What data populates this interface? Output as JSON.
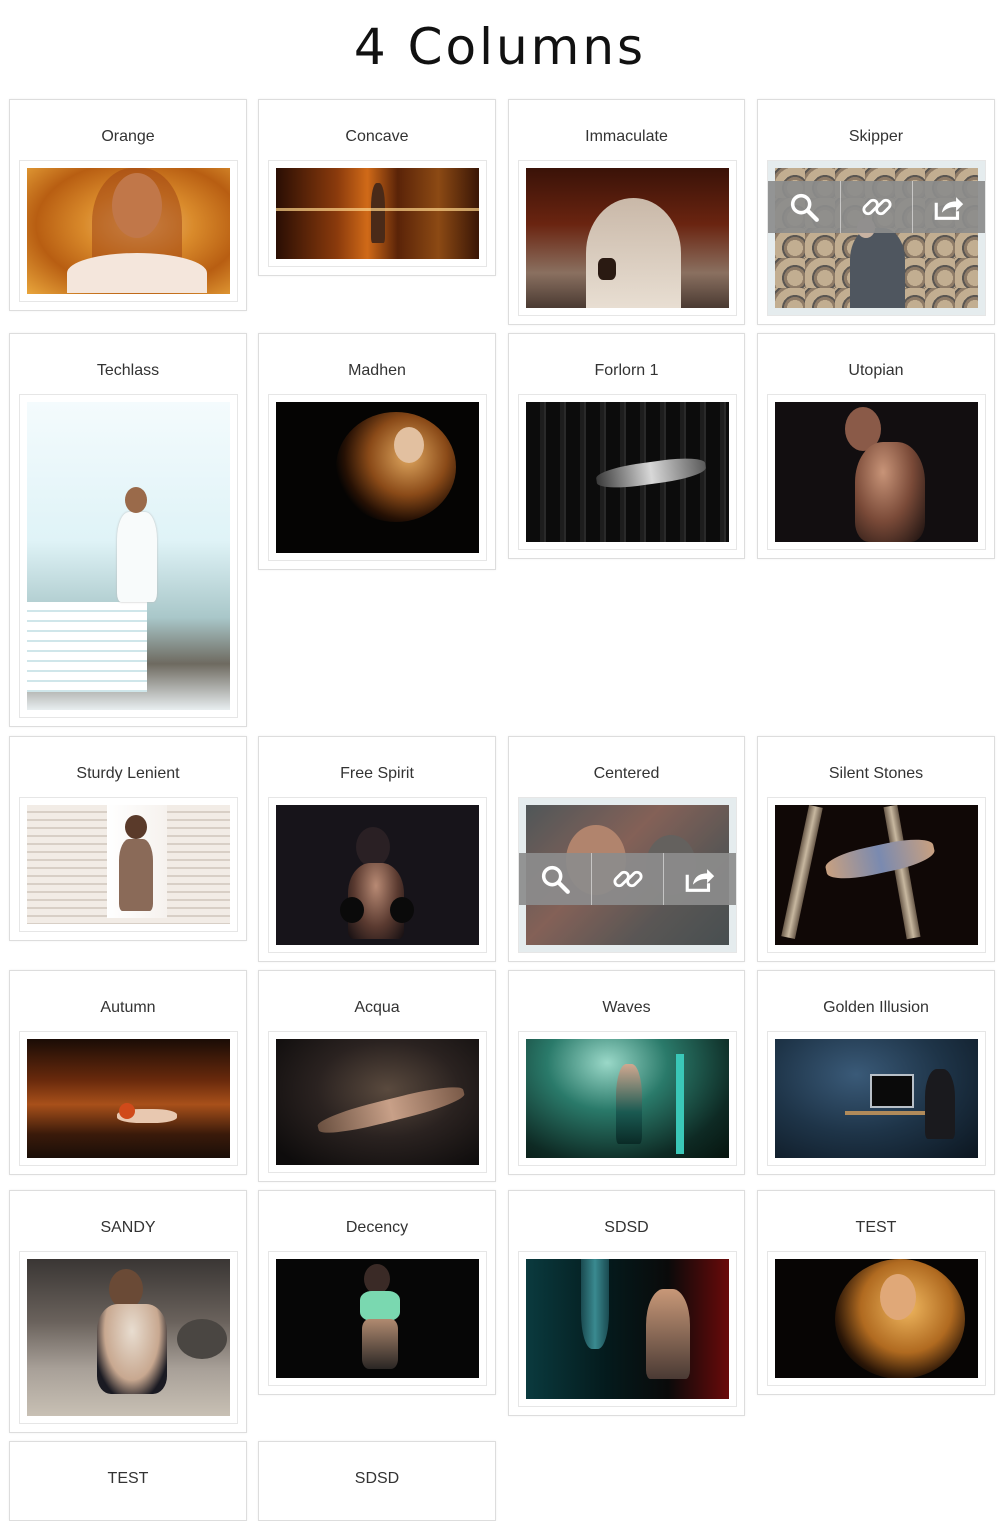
{
  "page": {
    "title": "4 Columns"
  },
  "gallery": {
    "items": [
      {
        "title": "Orange"
      },
      {
        "title": "Concave"
      },
      {
        "title": "Immaculate"
      },
      {
        "title": "Skipper"
      },
      {
        "title": "Techlass"
      },
      {
        "title": "Madhen"
      },
      {
        "title": "Forlorn 1"
      },
      {
        "title": "Utopian"
      },
      {
        "title": "Sturdy Lenient"
      },
      {
        "title": "Free Spirit"
      },
      {
        "title": "Centered"
      },
      {
        "title": "Silent Stones"
      },
      {
        "title": "Autumn"
      },
      {
        "title": "Acqua"
      },
      {
        "title": "Waves"
      },
      {
        "title": "Golden Illusion"
      },
      {
        "title": "SANDY"
      },
      {
        "title": "Decency"
      },
      {
        "title": "SDSD"
      },
      {
        "title": "TEST"
      },
      {
        "title": "TEST"
      },
      {
        "title": "SDSD"
      }
    ]
  },
  "overlay_actions": [
    "zoom",
    "link",
    "share"
  ],
  "colors": {
    "overlay": "#8c8c8c",
    "border": "#dddddd",
    "text": "#333333"
  }
}
